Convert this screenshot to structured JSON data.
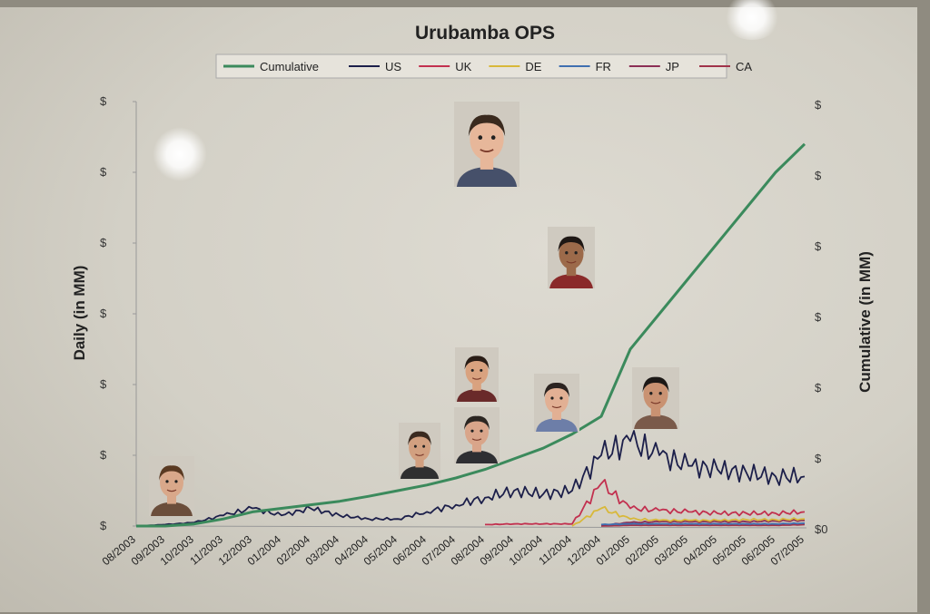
{
  "chart_data": {
    "type": "line",
    "title": "Urubamba OPS",
    "ylabel": "Daily (in MM)",
    "y2label": "Cumulative (in MM)",
    "left_tick_labels": [
      "$",
      "$",
      "$",
      "$",
      "$",
      "$",
      "$"
    ],
    "right_tick_labels": [
      "$0",
      "$",
      "$",
      "$",
      "$",
      "$",
      "$"
    ],
    "categories": [
      "08/2003",
      "09/2003",
      "10/2003",
      "11/2003",
      "12/2003",
      "01/2004",
      "02/2004",
      "03/2004",
      "04/2004",
      "05/2004",
      "06/2004",
      "07/2004",
      "08/2004",
      "09/2004",
      "10/2004",
      "11/2004",
      "12/2004",
      "01/2005",
      "02/2005",
      "03/2005",
      "04/2005",
      "05/2005",
      "06/2005",
      "07/2005"
    ],
    "ylim": [
      0,
      6
    ],
    "y2lim": [
      0,
      6
    ],
    "legend_position": "top",
    "series": [
      {
        "name": "Cumulative",
        "axis": "right",
        "color": "#3b8a5c",
        "values": [
          0.0,
          0.0,
          0.03,
          0.1,
          0.2,
          0.25,
          0.3,
          0.35,
          0.42,
          0.5,
          0.58,
          0.68,
          0.8,
          0.95,
          1.1,
          1.3,
          1.55,
          2.5,
          3.0,
          3.5,
          4.0,
          4.5,
          5.0,
          5.4
        ]
      },
      {
        "name": "US",
        "axis": "left",
        "color": "#1c1f4a",
        "values": [
          0.0,
          0.02,
          0.05,
          0.15,
          0.25,
          0.15,
          0.25,
          0.15,
          0.1,
          0.1,
          0.2,
          0.3,
          0.4,
          0.5,
          0.45,
          0.5,
          1.0,
          1.2,
          1.0,
          0.85,
          0.8,
          0.75,
          0.7,
          0.7
        ]
      },
      {
        "name": "UK",
        "axis": "left",
        "color": "#c2304f",
        "values": [
          null,
          null,
          null,
          null,
          null,
          null,
          null,
          null,
          null,
          null,
          null,
          null,
          0.02,
          0.03,
          0.03,
          0.03,
          0.6,
          0.25,
          0.22,
          0.2,
          0.18,
          0.18,
          0.18,
          0.2
        ]
      },
      {
        "name": "DE",
        "axis": "left",
        "color": "#d8b83a",
        "values": [
          null,
          null,
          null,
          null,
          null,
          null,
          null,
          null,
          null,
          null,
          null,
          null,
          null,
          null,
          null,
          0.0,
          0.25,
          0.1,
          0.08,
          0.08,
          0.08,
          0.09,
          0.09,
          0.1
        ]
      },
      {
        "name": "FR",
        "axis": "left",
        "color": "#3f6fb0",
        "values": [
          null,
          null,
          null,
          null,
          null,
          null,
          null,
          null,
          null,
          null,
          null,
          null,
          null,
          null,
          null,
          null,
          0.02,
          0.03,
          0.03,
          0.03,
          0.03,
          0.03,
          0.03,
          0.04
        ]
      },
      {
        "name": "JP",
        "axis": "left",
        "color": "#8c2e55",
        "values": [
          null,
          null,
          null,
          null,
          null,
          null,
          null,
          null,
          null,
          null,
          null,
          null,
          null,
          null,
          null,
          null,
          0.01,
          0.05,
          0.06,
          0.06,
          0.06,
          0.06,
          0.07,
          0.08
        ]
      },
      {
        "name": "CA",
        "axis": "left",
        "color": "#a0334a",
        "values": [
          null,
          null,
          null,
          null,
          null,
          null,
          null,
          null,
          null,
          null,
          null,
          null,
          null,
          null,
          null,
          null,
          0.0,
          0.01,
          0.01,
          0.01,
          0.01,
          0.01,
          0.01,
          0.02
        ]
      }
    ]
  },
  "photos": [
    {
      "name": "photo-person-1",
      "skin": "#d9a88a",
      "hair": "#5a3a22",
      "shirt": "#6b4e3b"
    },
    {
      "name": "photo-person-2",
      "skin": "#e7b79a",
      "hair": "#3a2a1e",
      "shirt": "#46506a"
    },
    {
      "name": "photo-person-3",
      "skin": "#9c6a4a",
      "hair": "#1e1714",
      "shirt": "#8a2a2a"
    },
    {
      "name": "photo-person-4",
      "skin": "#d9a27f",
      "hair": "#2a1d16",
      "shirt": "#6a2a2a"
    },
    {
      "name": "photo-person-5",
      "skin": "#d2a080",
      "hair": "#3a2a20",
      "shirt": "#2f2f30"
    },
    {
      "name": "photo-person-6",
      "skin": "#d9a58a",
      "hair": "#2c2622",
      "shirt": "#2e2e32"
    },
    {
      "name": "photo-person-7",
      "skin": "#e2b094",
      "hair": "#2b2320",
      "shirt": "#6d7ea8"
    },
    {
      "name": "photo-person-8",
      "skin": "#c99272",
      "hair": "#1c1816",
      "shirt": "#7a5a4a"
    }
  ]
}
